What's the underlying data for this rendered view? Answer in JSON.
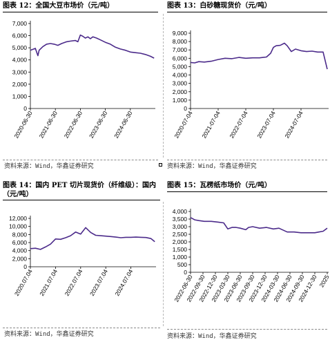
{
  "source_text": "资料来源：Wind，华鑫证券研究",
  "line_color": "#4b2a8a",
  "chart_data": [
    {
      "type": "line",
      "title": "图表 12：全国大豆市场价（元/吨）",
      "ylim": [
        0,
        7000
      ],
      "yticks": [
        0,
        1000,
        2000,
        3000,
        4000,
        5000,
        6000,
        7000
      ],
      "ytick_labels": [
        "0",
        "1,000",
        "2,000",
        "3,000",
        "4,000",
        "5,000",
        "6,000",
        "7,000"
      ],
      "xlim": [
        0,
        100
      ],
      "xticks": [
        0,
        20,
        40,
        60,
        80
      ],
      "xtick_labels": [
        "2020-06-30",
        "2021-06-30",
        "2022-06-30",
        "2023-06-30",
        "2024-06-30"
      ],
      "x": [
        0,
        4,
        6,
        7,
        8,
        10,
        13,
        16,
        19,
        22,
        25,
        29,
        32,
        36,
        38,
        40,
        42,
        44,
        46,
        48,
        50,
        53,
        56,
        60,
        64,
        68,
        72,
        76,
        80,
        84,
        88,
        92,
        96,
        99
      ],
      "y": [
        4800,
        4950,
        4350,
        4800,
        4900,
        5100,
        5300,
        5350,
        5300,
        5200,
        5350,
        5500,
        5550,
        5600,
        5500,
        6050,
        5950,
        5800,
        5900,
        5750,
        5900,
        5800,
        5650,
        5450,
        5300,
        5050,
        4900,
        4800,
        4650,
        4600,
        4550,
        4450,
        4300,
        4150
      ]
    },
    {
      "type": "line",
      "title": "图表 13：白砂糖现货价（元/吨）",
      "ylim": [
        0,
        9000
      ],
      "yticks": [
        0,
        1000,
        2000,
        3000,
        4000,
        5000,
        6000,
        7000,
        8000,
        9000
      ],
      "ytick_labels": [
        "0",
        "1,000",
        "2,000",
        "3,000",
        "4,000",
        "5,000",
        "6,000",
        "7,000",
        "8,000",
        "9,000"
      ],
      "xlim": [
        0,
        100
      ],
      "xticks": [
        0,
        20,
        40,
        60,
        80
      ],
      "xtick_labels": [
        "2020-07-04",
        "2021-07-04",
        "2022-07-04",
        "2023-07-04",
        "2024-07-04"
      ],
      "x": [
        0,
        3,
        6,
        10,
        15,
        20,
        25,
        30,
        35,
        40,
        45,
        50,
        55,
        58,
        60,
        62,
        65,
        68,
        70,
        73,
        76,
        80,
        84,
        88,
        92,
        96,
        99
      ],
      "y": [
        5500,
        5450,
        5600,
        5550,
        5650,
        5850,
        6000,
        5950,
        6100,
        6000,
        6050,
        6050,
        6150,
        6600,
        7300,
        7500,
        7550,
        7800,
        7500,
        6800,
        7100,
        6900,
        6800,
        6850,
        6750,
        6750,
        4700
      ]
    },
    {
      "type": "line",
      "title": "图表 14：国内 PET 切片现货价（纤维级）：国内（元/吨）",
      "ylim": [
        0,
        12000
      ],
      "yticks": [
        0,
        2000,
        4000,
        6000,
        8000,
        10000,
        12000
      ],
      "ytick_labels": [
        "0",
        "2,000",
        "4,000",
        "6,000",
        "8,000",
        "10,000",
        "12,000"
      ],
      "xlim": [
        0,
        100
      ],
      "xticks": [
        0,
        20,
        40,
        60,
        80
      ],
      "xtick_labels": [
        "2020.07.04",
        "2021.07.04",
        "2022.07.04",
        "2023.07.04",
        "2024.07.04"
      ],
      "x": [
        0,
        4,
        8,
        12,
        16,
        20,
        24,
        28,
        32,
        36,
        40,
        44,
        48,
        52,
        56,
        60,
        64,
        68,
        72,
        76,
        80,
        84,
        88,
        92,
        96,
        99
      ],
      "y": [
        4500,
        4600,
        4300,
        4900,
        5600,
        6900,
        6800,
        7200,
        7700,
        8600,
        8100,
        9700,
        8500,
        7800,
        7700,
        7600,
        7500,
        7350,
        7200,
        7300,
        7300,
        7350,
        7300,
        7250,
        7000,
        6200
      ]
    },
    {
      "type": "line",
      "title": "图表 15：瓦楞纸市场价（元/吨）",
      "ylim": [
        0,
        4000
      ],
      "yticks": [
        0,
        500,
        1000,
        1500,
        2000,
        2500,
        3000,
        3500,
        4000
      ],
      "ytick_labels": [
        "0",
        "500",
        "1,000",
        "1,500",
        "2,000",
        "2,500",
        "3,000",
        "3,500",
        "4,000"
      ],
      "xlim": [
        0,
        100
      ],
      "xticks": [
        0,
        9,
        18,
        27,
        36,
        45,
        54,
        63,
        72,
        81,
        90,
        99
      ],
      "xtick_labels": [
        "2022-06-30",
        "2022-09-30",
        "2022-12-30",
        "2023-03-30",
        "2023-06-30",
        "2023-09-30",
        "2023-12-30",
        "2024-03-30",
        "2024-06-30",
        "2024-09-30",
        "2024-12-30",
        "2025"
      ],
      "x": [
        0,
        3,
        6,
        10,
        15,
        20,
        24,
        27,
        30,
        33,
        36,
        40,
        42,
        45,
        50,
        55,
        60,
        64,
        70,
        75,
        80,
        85,
        90,
        93,
        96,
        99
      ],
      "y": [
        3600,
        3450,
        3400,
        3350,
        3350,
        3300,
        3250,
        2850,
        2950,
        2950,
        2900,
        2800,
        2950,
        3000,
        2900,
        2950,
        2850,
        2900,
        2650,
        2650,
        2600,
        2600,
        2600,
        2650,
        2700,
        2900
      ]
    }
  ]
}
